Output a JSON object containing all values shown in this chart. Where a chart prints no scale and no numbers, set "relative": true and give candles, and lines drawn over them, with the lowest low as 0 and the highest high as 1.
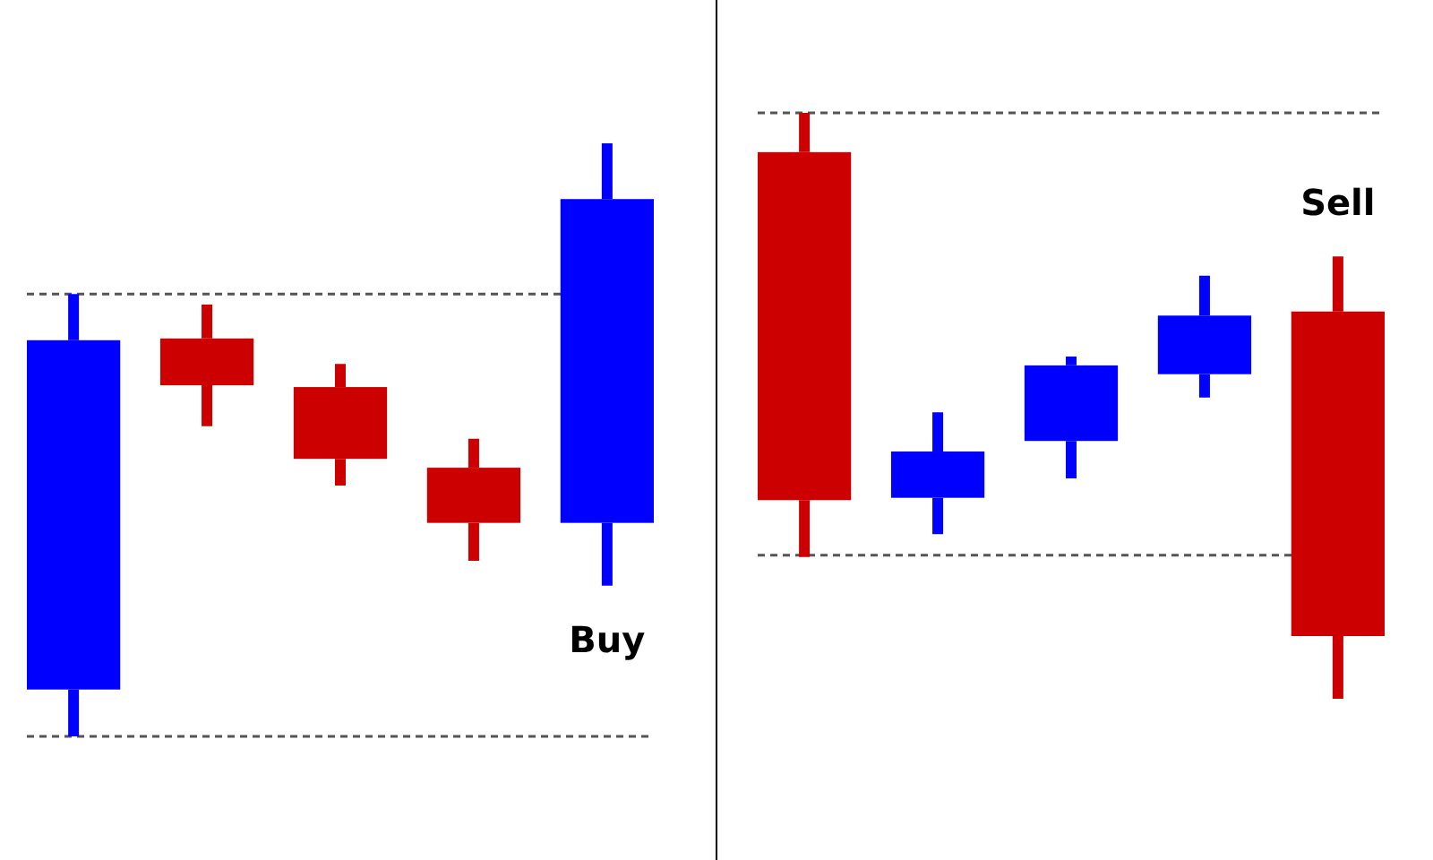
{
  "chart_data": [
    {
      "type": "candlestick",
      "relative": true,
      "categories": [
        null,
        null,
        null,
        null,
        null
      ],
      "ohlc": [
        [
          0.079,
          0.746,
          0,
          0.668
        ],
        [
          0.671,
          0.728,
          0.523,
          0.592
        ],
        [
          0.589,
          0.628,
          0.423,
          0.468
        ],
        [
          0.453,
          0.502,
          0.296,
          0.36
        ],
        [
          0.36,
          1,
          0.254,
          0.906
        ]
      ],
      "colors": [
        "#0000ff",
        "#cc0000",
        "#cc0000",
        "#cc0000",
        "#0000ff"
      ],
      "ref_lines": [
        {
          "axis": "y",
          "value": 0.746,
          "color": "#555555",
          "line_style": "dashed"
        },
        {
          "axis": "y",
          "value": 0,
          "color": "#555555",
          "line_style": "dashed"
        }
      ],
      "annotations": [
        "Buy"
      ]
    },
    {
      "type": "candlestick",
      "relative": true,
      "categories": [
        null,
        null,
        null,
        null,
        null
      ],
      "ohlc": [
        [
          0.933,
          1,
          0.242,
          0.339
        ],
        [
          0.343,
          0.489,
          0.281,
          0.422
        ],
        [
          0.44,
          0.584,
          0.376,
          0.569
        ],
        [
          0.554,
          0.722,
          0.514,
          0.654
        ],
        [
          0.661,
          0.755,
          0,
          0.107
        ]
      ],
      "colors": [
        "#cc0000",
        "#0000ff",
        "#0000ff",
        "#0000ff",
        "#cc0000"
      ],
      "ref_lines": [
        {
          "axis": "y",
          "value": 1,
          "color": "#555555",
          "line_style": "dashed"
        },
        {
          "axis": "y",
          "value": 0.245,
          "color": "#555555",
          "line_style": "dashed"
        }
      ],
      "annotations": [
        "Sell"
      ]
    }
  ]
}
